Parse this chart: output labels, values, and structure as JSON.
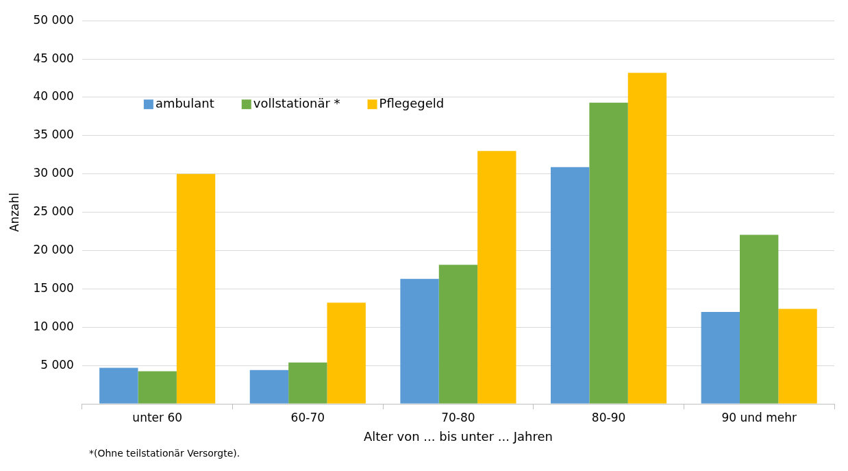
{
  "chart_data": {
    "type": "bar",
    "xlabel": "Alter von ... bis unter ... Jahren",
    "ylabel": "Anzahl",
    "categories": [
      "unter 60",
      "60-70",
      "70-80",
      "80-90",
      "90 und mehr"
    ],
    "series": [
      {
        "name": "ambulant",
        "color": "#5b9bd5",
        "values": [
          4700,
          4400,
          16300,
          30900,
          12000
        ]
      },
      {
        "name": "vollstationär *",
        "color": "#70ad47",
        "values": [
          4250,
          5400,
          18150,
          39300,
          22050
        ]
      },
      {
        "name": "Pflegegeld",
        "color": "#ffc000",
        "values": [
          30000,
          13200,
          33000,
          43200,
          12400
        ]
      }
    ],
    "ylim": [
      0,
      50000
    ],
    "yticks": [
      {
        "value": 0,
        "label": null
      },
      {
        "value": 5000,
        "label": "5 000"
      },
      {
        "value": 10000,
        "label": "10 000"
      },
      {
        "value": 15000,
        "label": "15 000"
      },
      {
        "value": 20000,
        "label": "20 000"
      },
      {
        "value": 25000,
        "label": "25 000"
      },
      {
        "value": 30000,
        "label": "30 000"
      },
      {
        "value": 35000,
        "label": "35 000"
      },
      {
        "value": 40000,
        "label": "40 000"
      },
      {
        "value": 45000,
        "label": "45 000"
      },
      {
        "value": 50000,
        "label": "50 000"
      }
    ],
    "grid": "y",
    "legend": "top left",
    "annotations": [
      "*(Ohne teilstationär Versorgte)."
    ]
  }
}
